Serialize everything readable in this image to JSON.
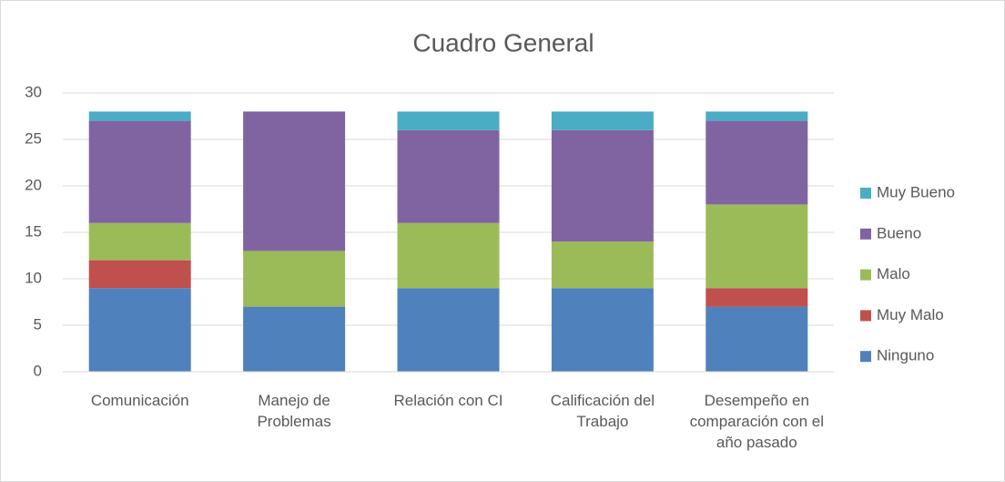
{
  "chart_data": {
    "type": "stacked_bar",
    "title": "Cuadro General",
    "categories": [
      "Comunicación",
      "Manejo de Problemas",
      "Relación con CI",
      "Calificación del Trabajo",
      "Desempeño en comparación con el año pasado"
    ],
    "series": [
      {
        "name": "Ninguno",
        "color": "#4f81bd",
        "values": [
          9,
          7,
          9,
          9,
          7
        ]
      },
      {
        "name": "Muy Malo",
        "color": "#c0504d",
        "values": [
          3,
          0,
          0,
          0,
          2
        ]
      },
      {
        "name": "Malo",
        "color": "#9bbb59",
        "values": [
          4,
          6,
          7,
          5,
          9
        ]
      },
      {
        "name": "Bueno",
        "color": "#8064a2",
        "values": [
          11,
          15,
          10,
          12,
          9
        ]
      },
      {
        "name": "Muy Bueno",
        "color": "#4bacc6",
        "values": [
          1,
          0,
          2,
          2,
          1
        ]
      }
    ],
    "ylim": [
      0,
      30
    ],
    "yticks": [
      0,
      5,
      10,
      15,
      20,
      25,
      30
    ],
    "grid": true,
    "legend": "right"
  }
}
